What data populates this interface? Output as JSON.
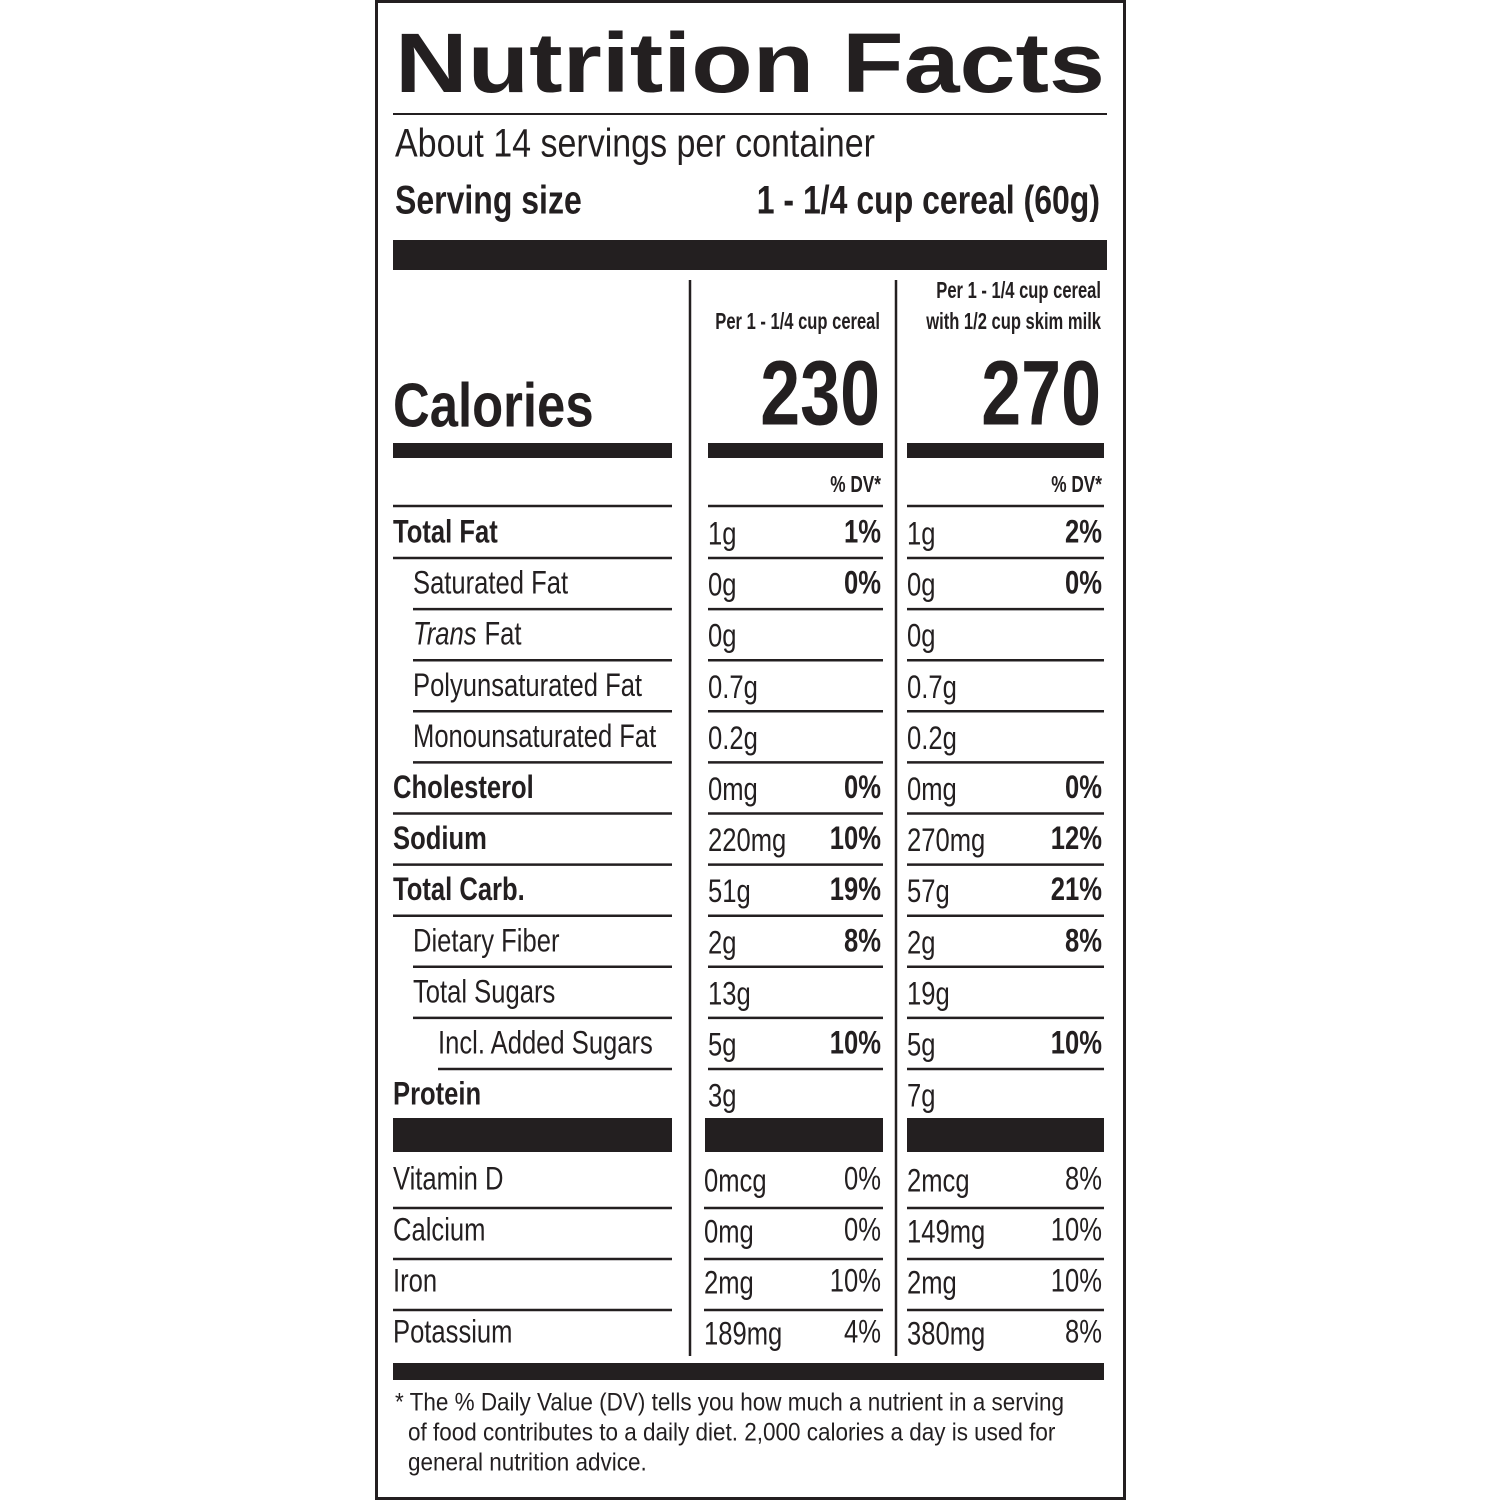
{
  "header": {
    "title": "Nutrition Facts",
    "servings": "About 14 servings per container",
    "serving_size_label": "Serving size",
    "serving_size": "1 - 1/4 cup cereal (60g)"
  },
  "calories_label": "Calories",
  "columns": [
    {
      "heading": [
        "Per 1 - 1/4 cup cereal"
      ],
      "calories": 230,
      "dv_heading": "% DV*"
    },
    {
      "heading": [
        "Per 1 - 1/4 cup cereal",
        "with 1/2 cup skim milk"
      ],
      "calories": 270,
      "dv_heading": "% DV*"
    }
  ],
  "nutrients": [
    {
      "name": "Total Fat",
      "bold": true,
      "indent": 0,
      "amounts": [
        [
          "1g",
          "1%"
        ],
        [
          "1g",
          "2%"
        ]
      ]
    },
    {
      "name": "Saturated Fat",
      "bold": false,
      "indent": 1,
      "amounts": [
        [
          "0g",
          "0%"
        ],
        [
          "0g",
          "0%"
        ]
      ]
    },
    {
      "italic_prefix": "Trans",
      "name": "Fat",
      "bold": false,
      "indent": 1,
      "amounts": [
        [
          "0g",
          null
        ],
        [
          "0g",
          null
        ]
      ]
    },
    {
      "name": "Polyunsaturated Fat",
      "bold": false,
      "indent": 1,
      "amounts": [
        [
          "0.7g",
          null
        ],
        [
          "0.7g",
          null
        ]
      ]
    },
    {
      "name": "Monounsaturated Fat",
      "bold": false,
      "indent": 1,
      "amounts": [
        [
          "0.2g",
          null
        ],
        [
          "0.2g",
          null
        ]
      ]
    },
    {
      "name": "Cholesterol",
      "bold": true,
      "indent": 0,
      "amounts": [
        [
          "0mg",
          "0%"
        ],
        [
          "0mg",
          "0%"
        ]
      ]
    },
    {
      "name": "Sodium",
      "bold": true,
      "indent": 0,
      "amounts": [
        [
          "220mg",
          "10%"
        ],
        [
          "270mg",
          "12%"
        ]
      ]
    },
    {
      "name": "Total Carb.",
      "bold": true,
      "indent": 0,
      "amounts": [
        [
          "51g",
          "19%"
        ],
        [
          "57g",
          "21%"
        ]
      ]
    },
    {
      "name": "Dietary Fiber",
      "bold": false,
      "indent": 1,
      "amounts": [
        [
          "2g",
          "8%"
        ],
        [
          "2g",
          "8%"
        ]
      ]
    },
    {
      "name": "Total Sugars",
      "bold": false,
      "indent": 1,
      "amounts": [
        [
          "13g",
          null
        ],
        [
          "19g",
          null
        ]
      ]
    },
    {
      "name": "Incl. Added Sugars",
      "bold": false,
      "indent": 2,
      "amounts": [
        [
          "5g",
          "10%"
        ],
        [
          "5g",
          "10%"
        ]
      ]
    },
    {
      "name": "Protein",
      "bold": true,
      "indent": 0,
      "amounts": [
        [
          "3g",
          null
        ],
        [
          "7g",
          null
        ]
      ]
    }
  ],
  "vitamins": [
    {
      "name": "Vitamin D",
      "amounts": [
        [
          "0mcg",
          "0%"
        ],
        [
          "2mcg",
          "8%"
        ]
      ]
    },
    {
      "name": "Calcium",
      "amounts": [
        [
          "0mg",
          "0%"
        ],
        [
          "149mg",
          "10%"
        ]
      ]
    },
    {
      "name": "Iron",
      "amounts": [
        [
          "2mg",
          "10%"
        ],
        [
          "2mg",
          "10%"
        ]
      ]
    },
    {
      "name": "Potassium",
      "amounts": [
        [
          "189mg",
          "4%"
        ],
        [
          "380mg",
          "8%"
        ]
      ]
    }
  ],
  "footnote": [
    "* The % Daily Value (DV) tells you how much a nutrient in a serving",
    "of food contributes to a daily diet. 2,000 calories a day is used for",
    "general nutrition advice."
  ]
}
